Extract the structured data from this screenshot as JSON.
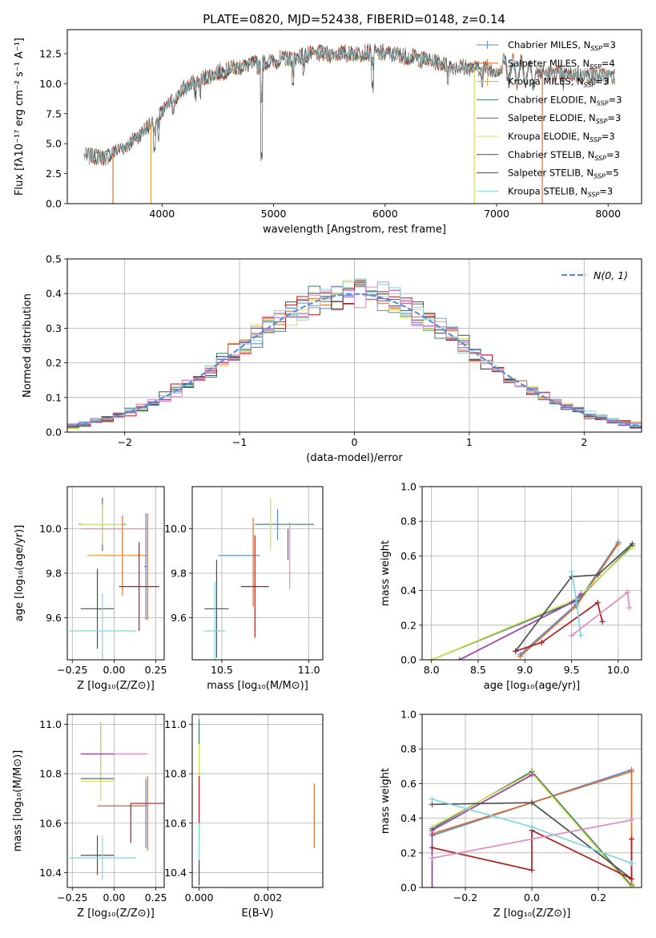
{
  "figure_title": "PLATE=0820, MJD=52438, FIBERID=0148, z=0.14",
  "chart_data": [
    {
      "id": "spectrum",
      "type": "line",
      "xlabel": "wavelength [Angstrom, rest frame]",
      "ylabel": "Flux [fλ10⁻¹⁷ erg cm⁻² s⁻¹ A⁻¹]",
      "xlim": [
        3150,
        8300
      ],
      "ylim": [
        0,
        14.5
      ],
      "xticks": [
        4000,
        5000,
        6000,
        7000,
        8000
      ],
      "yticks": [
        0.0,
        2.5,
        5.0,
        7.5,
        10.0,
        12.5
      ],
      "grid": false,
      "legend_position": "top-right",
      "continuum": {
        "x": [
          3300,
          3500,
          3700,
          3850,
          4000,
          4200,
          4400,
          4600,
          4800,
          5000,
          5200,
          5400,
          5600,
          5800,
          6000,
          6200,
          6400,
          6600,
          6800,
          7000,
          7200,
          7400,
          7600,
          7800,
          8050
        ],
        "y": [
          4.0,
          3.9,
          5.0,
          6.2,
          7.6,
          9.6,
          10.6,
          11.2,
          11.6,
          11.9,
          12.2,
          12.5,
          12.5,
          12.6,
          12.5,
          12.3,
          11.9,
          11.5,
          11.3,
          11.2,
          11.1,
          10.9,
          10.8,
          10.7,
          10.6
        ]
      },
      "series": [
        {
          "name": "Chabrier MILES, N",
          "sub": "SSP",
          "tail": "=3",
          "color": "#5b8ed6"
        },
        {
          "name": "Salpeter MILES, N",
          "sub": "SSP",
          "tail": "=4",
          "color": "#e06c2c"
        },
        {
          "name": "Kroupa MILES, N",
          "sub": "SSP",
          "tail": "=3",
          "color": "#f0a13a"
        },
        {
          "name": "Chabrier ELODIE, N",
          "sub": "SSP",
          "tail": "=3",
          "color": "#3f7a6a"
        },
        {
          "name": "Salpeter ELODIE, N",
          "sub": "SSP",
          "tail": "=3",
          "color": "#9a3db0"
        },
        {
          "name": "Kroupa ELODIE, N",
          "sub": "SSP",
          "tail": "=3",
          "color": "#d4e05a"
        },
        {
          "name": "Chabrier STELIB, N",
          "sub": "SSP",
          "tail": "=3",
          "color": "#4d4d4d"
        },
        {
          "name": "Salpeter STELIB, N",
          "sub": "SSP",
          "tail": "=5",
          "color": "#b01c1c"
        },
        {
          "name": "Kroupa STELIB, N",
          "sub": "SSP",
          "tail": "=3",
          "color": "#7fd8e0"
        }
      ],
      "vertical_drops": [
        {
          "x": 3560,
          "color": "#e06c2c"
        },
        {
          "x": 3900,
          "color": "#f0a13a"
        },
        {
          "x": 6800,
          "color": "#d4e05a"
        },
        {
          "x": 7410,
          "color": "#e06c2c"
        }
      ]
    },
    {
      "id": "residuals",
      "type": "line",
      "xlabel": "(data-model)/error",
      "ylabel": "Normed distribution",
      "xlim": [
        -2.5,
        2.5
      ],
      "ylim": [
        0,
        0.5
      ],
      "xticks": [
        -2,
        -1,
        0,
        1,
        2
      ],
      "xtick_labels": [
        "−2",
        "−1",
        "0",
        "1",
        "2"
      ],
      "yticks": [
        0.0,
        0.1,
        0.2,
        0.3,
        0.4,
        0.5
      ],
      "grid": true,
      "legend_position": "top-right",
      "legend_label": "N(0, 1)",
      "normal_color": "#5b8ed6",
      "bin_width": 0.1,
      "hist_colors": [
        "#5b8ed6",
        "#e06c2c",
        "#3f7a6a",
        "#9a3db0",
        "#d4e05a",
        "#4d4d4d",
        "#b01c1c",
        "#7fd8e0",
        "#e18ac4"
      ]
    },
    {
      "id": "age-vs-Z",
      "type": "errorbar",
      "xlabel": "Z [log₁₀(Z/Z⊙)]",
      "ylabel": "age  [log₁₀(age/yr)]",
      "xlim": [
        -0.28,
        0.3
      ],
      "ylim": [
        9.41,
        10.19
      ],
      "xticks": [
        -0.25,
        0.0,
        0.25
      ],
      "xtick_labels": [
        "−0.25",
        "0.00",
        "0.25"
      ],
      "yticks": [
        9.6,
        9.8,
        10.0
      ],
      "grid": true,
      "points": [
        {
          "x": -0.07,
          "xerr": 0.14,
          "y": 10.02,
          "yerr": 0.12,
          "color": "#3f7a6a"
        },
        {
          "x": -0.07,
          "xerr": 0.13,
          "y": 10.02,
          "yerr": 0.09,
          "color": "#d4e05a"
        },
        {
          "x": 0.0,
          "xerr": 0.2,
          "y": 10.0,
          "yerr": 0.0,
          "color": "#e18ac4"
        },
        {
          "x": 0.05,
          "xerr": 0.15,
          "y": 9.88,
          "yerr": 0.18,
          "color": "#e06c2c"
        },
        {
          "x": 0.02,
          "xerr": 0.18,
          "y": 9.88,
          "yerr": 0.0,
          "color": "#f0a13a"
        },
        {
          "x": 0.19,
          "xerr": 0.01,
          "y": 9.83,
          "yerr": 0.24,
          "color": "#5b8ed6"
        },
        {
          "x": 0.2,
          "xerr": 0.0,
          "y": 9.83,
          "yerr": 0.24,
          "color": "#e06c2c"
        },
        {
          "x": 0.15,
          "xerr": 0.12,
          "y": 9.74,
          "yerr": 0.2,
          "color": "#b01c1c"
        },
        {
          "x": -0.1,
          "xerr": 0.1,
          "y": 9.64,
          "yerr": 0.18,
          "color": "#4d4d4d"
        },
        {
          "x": -0.07,
          "xerr": 0.2,
          "y": 9.54,
          "yerr": 0.17,
          "color": "#7fd8e0"
        }
      ]
    },
    {
      "id": "age-vs-mass",
      "type": "errorbar",
      "xlabel": "mass [log₁₀(M/M⊙)]",
      "xlim": [
        10.33,
        11.08
      ],
      "ylim": [
        9.41,
        10.19
      ],
      "xticks": [
        10.5,
        11.0
      ],
      "xtick_labels": [
        "10.5",
        "11.0"
      ],
      "yticks": [
        9.6,
        9.8,
        10.0
      ],
      "grid": true,
      "points": [
        {
          "x": 10.86,
          "xerr": 0.17,
          "y": 10.02,
          "yerr": 0.0,
          "color": "#3f7a6a"
        },
        {
          "x": 10.78,
          "xerr": 0.0,
          "y": 10.02,
          "yerr": 0.12,
          "color": "#d4e05a"
        },
        {
          "x": 10.82,
          "xerr": 0.0,
          "y": 10.02,
          "yerr": 0.07,
          "color": "#5b8ed6"
        },
        {
          "x": 10.88,
          "xerr": 0.0,
          "y": 9.93,
          "yerr": 0.07,
          "color": "#9a3db0"
        },
        {
          "x": 10.89,
          "xerr": 0.0,
          "y": 9.88,
          "yerr": 0.15,
          "color": "#e18ac4"
        },
        {
          "x": 10.6,
          "xerr": 0.12,
          "y": 9.88,
          "yerr": 0.0,
          "color": "#5b8ed6"
        },
        {
          "x": 10.68,
          "xerr": 0.0,
          "y": 9.85,
          "yerr": 0.2,
          "color": "#e06c2c"
        },
        {
          "x": 10.69,
          "xerr": 0.08,
          "y": 9.74,
          "yerr": 0.23,
          "color": "#b01c1c"
        },
        {
          "x": 10.47,
          "xerr": 0.07,
          "y": 9.64,
          "yerr": 0.22,
          "color": "#4d4d4d"
        },
        {
          "x": 10.46,
          "xerr": 0.06,
          "y": 9.54,
          "yerr": 0.22,
          "color": "#7fd8e0"
        }
      ]
    },
    {
      "id": "weight-vs-age",
      "type": "line",
      "xlabel": "age  [log₁₀(age/yr)]",
      "ylabel": "mass weight",
      "xlim": [
        7.9,
        10.25
      ],
      "ylim": [
        0,
        1
      ],
      "xticks": [
        8.0,
        8.5,
        9.0,
        9.5,
        10.0
      ],
      "xtick_labels": [
        "8.0",
        "8.5",
        "9.0",
        "9.5",
        "10.0"
      ],
      "yticks": [
        0.0,
        0.2,
        0.4,
        0.6,
        0.8,
        1.0
      ],
      "grid": true,
      "series": [
        {
          "color": "#5b8ed6",
          "points": [
            [
              8.95,
              0.03
            ],
            [
              9.55,
              0.32
            ],
            [
              10.0,
              0.68
            ]
          ]
        },
        {
          "color": "#e06c2c",
          "points": [
            [
              8.95,
              0.02
            ],
            [
              9.55,
              0.31
            ],
            [
              10.0,
              0.67
            ]
          ]
        },
        {
          "color": "#3f7a6a",
          "points": [
            [
              8.0,
              0.0
            ],
            [
              9.55,
              0.34
            ],
            [
              10.15,
              0.66
            ]
          ]
        },
        {
          "color": "#d4e05a",
          "points": [
            [
              8.0,
              0.0
            ],
            [
              9.55,
              0.35
            ],
            [
              10.15,
              0.65
            ]
          ]
        },
        {
          "color": "#9a3db0",
          "points": [
            [
              8.3,
              0.0
            ],
            [
              9.5,
              0.33
            ],
            [
              9.6,
              0.38
            ]
          ]
        },
        {
          "color": "#4d4d4d",
          "points": [
            [
              8.9,
              0.05
            ],
            [
              9.5,
              0.48
            ],
            [
              9.78,
              0.49
            ],
            [
              10.15,
              0.67
            ]
          ]
        },
        {
          "color": "#b01c1c",
          "points": [
            [
              8.9,
              0.05
            ],
            [
              9.18,
              0.1
            ],
            [
              9.78,
              0.33
            ],
            [
              9.83,
              0.22
            ]
          ]
        },
        {
          "color": "#7fd8e0",
          "points": [
            [
              9.5,
              0.51
            ],
            [
              9.55,
              0.35
            ],
            [
              9.6,
              0.14
            ]
          ]
        },
        {
          "color": "#e18ac4",
          "points": [
            [
              9.5,
              0.14
            ],
            [
              10.1,
              0.39
            ],
            [
              10.12,
              0.3
            ]
          ]
        }
      ]
    },
    {
      "id": "mass-vs-Z",
      "type": "errorbar",
      "xlabel": "Z [log₁₀(Z/Z⊙)]",
      "ylabel": "mass [log₁₀(M/M⊙)]",
      "xlim": [
        -0.28,
        0.3
      ],
      "ylim": [
        10.34,
        11.04
      ],
      "xticks": [
        -0.25,
        0.0,
        0.25
      ],
      "xtick_labels": [
        "−0.25",
        "0.00",
        "0.25"
      ],
      "yticks": [
        10.4,
        10.6,
        10.8,
        11.0
      ],
      "grid": true,
      "points": [
        {
          "x": -0.08,
          "xerr": 0.0,
          "y": 10.89,
          "yerr": 0.12,
          "color": "#3f7a6a"
        },
        {
          "x": -0.08,
          "xerr": 0.0,
          "y": 10.85,
          "yerr": 0.16,
          "color": "#d4e05a"
        },
        {
          "x": -0.1,
          "xerr": 0.1,
          "y": 10.88,
          "yerr": 0.0,
          "color": "#9a3db0"
        },
        {
          "x": 0.1,
          "xerr": 0.1,
          "y": 10.88,
          "yerr": 0.0,
          "color": "#e18ac4"
        },
        {
          "x": -0.1,
          "xerr": 0.1,
          "y": 10.78,
          "yerr": 0.0,
          "color": "#3f7a6a"
        },
        {
          "x": -0.1,
          "xerr": 0.1,
          "y": 10.77,
          "yerr": 0.0,
          "color": "#d4e05a"
        },
        {
          "x": 0.05,
          "xerr": 0.15,
          "y": 10.67,
          "yerr": 0.0,
          "color": "#5b8ed6"
        },
        {
          "x": 0.05,
          "xerr": 0.15,
          "y": 10.67,
          "yerr": 0.0,
          "color": "#e06c2c"
        },
        {
          "x": 0.19,
          "xerr": 0.0,
          "y": 10.64,
          "yerr": 0.14,
          "color": "#5b8ed6"
        },
        {
          "x": 0.2,
          "xerr": 0.0,
          "y": 10.64,
          "yerr": 0.15,
          "color": "#e06c2c"
        },
        {
          "x": 0.2,
          "xerr": 0.1,
          "y": 10.68,
          "yerr": 0.0,
          "color": "#b01c1c"
        },
        {
          "x": 0.1,
          "xerr": 0.0,
          "y": 10.6,
          "yerr": 0.08,
          "color": "#b01c1c"
        },
        {
          "x": -0.1,
          "xerr": 0.1,
          "y": 10.47,
          "yerr": 0.08,
          "color": "#4d4d4d"
        },
        {
          "x": -0.07,
          "xerr": 0.2,
          "y": 10.46,
          "yerr": 0.09,
          "color": "#7fd8e0"
        }
      ]
    },
    {
      "id": "mass-vs-EBV",
      "type": "errorbar",
      "xlabel": "E(B-V)",
      "xlim": [
        -0.0002,
        0.0036
      ],
      "ylim": [
        10.34,
        11.04
      ],
      "xticks": [
        0.0,
        0.002
      ],
      "xtick_labels": [
        "0.000",
        "0.002"
      ],
      "yticks": [
        10.4,
        10.6,
        10.8,
        11.0
      ],
      "grid": true,
      "points": [
        {
          "x": 0.0,
          "xerr": 0.0,
          "y": 10.9,
          "yerr": 0.12,
          "color": "#3f7a6a"
        },
        {
          "x": 0.0,
          "xerr": 0.0,
          "y": 10.8,
          "yerr": 0.12,
          "color": "#d4e05a"
        },
        {
          "x": 0.0,
          "xerr": 0.0,
          "y": 10.66,
          "yerr": 0.13,
          "color": "#b01c1c"
        },
        {
          "x": 0.0,
          "xerr": 0.0,
          "y": 10.48,
          "yerr": 0.12,
          "color": "#7fd8e0"
        },
        {
          "x": 0.0,
          "xerr": 0.0,
          "y": 10.4,
          "yerr": 0.05,
          "color": "#4d4d4d"
        },
        {
          "x": 0.00335,
          "xerr": 0.0,
          "y": 10.63,
          "yerr": 0.13,
          "color": "#e06c2c"
        }
      ]
    },
    {
      "id": "weight-vs-Z",
      "type": "line",
      "xlabel": "Z [log₁₀(Z/Z⊙)]",
      "ylabel": "mass weight",
      "xlim": [
        -0.33,
        0.33
      ],
      "ylim": [
        0,
        1
      ],
      "xticks": [
        -0.2,
        0.0,
        0.2
      ],
      "xtick_labels": [
        "−0.2",
        "0.0",
        "0.2"
      ],
      "yticks": [
        0.0,
        0.2,
        0.4,
        0.6,
        0.8,
        1.0
      ],
      "grid": true,
      "series": [
        {
          "color": "#5b8ed6",
          "points": [
            [
              -0.3,
              0.3
            ],
            [
              0.0,
              0.49
            ],
            [
              0.3,
              0.68
            ]
          ]
        },
        {
          "color": "#e06c2c",
          "points": [
            [
              -0.3,
              0.31
            ],
            [
              0.0,
              0.49
            ],
            [
              0.3,
              0.67
            ],
            [
              0.3,
              0.02
            ]
          ]
        },
        {
          "color": "#3f7a6a",
          "points": [
            [
              -0.3,
              0.34
            ],
            [
              0.0,
              0.67
            ],
            [
              0.3,
              0.01
            ]
          ]
        },
        {
          "color": "#d4e05a",
          "points": [
            [
              -0.3,
              0.35
            ],
            [
              0.0,
              0.66
            ],
            [
              0.3,
              0.0
            ]
          ]
        },
        {
          "color": "#9a3db0",
          "points": [
            [
              -0.3,
              0.0
            ],
            [
              -0.3,
              0.33
            ],
            [
              0.0,
              0.65
            ]
          ]
        },
        {
          "color": "#4d4d4d",
          "points": [
            [
              -0.3,
              0.48
            ],
            [
              0.0,
              0.49
            ],
            [
              0.3,
              0.05
            ]
          ]
        },
        {
          "color": "#b01c1c",
          "points": [
            [
              -0.3,
              0.23
            ],
            [
              0.0,
              0.1
            ],
            [
              0.0,
              0.33
            ],
            [
              0.3,
              0.05
            ],
            [
              0.3,
              0.28
            ]
          ]
        },
        {
          "color": "#7fd8e0",
          "points": [
            [
              -0.3,
              0.51
            ],
            [
              0.0,
              0.35
            ],
            [
              0.3,
              0.14
            ]
          ]
        },
        {
          "color": "#e18ac4",
          "points": [
            [
              -0.3,
              0.17
            ],
            [
              0.3,
              0.39
            ]
          ]
        }
      ]
    }
  ]
}
